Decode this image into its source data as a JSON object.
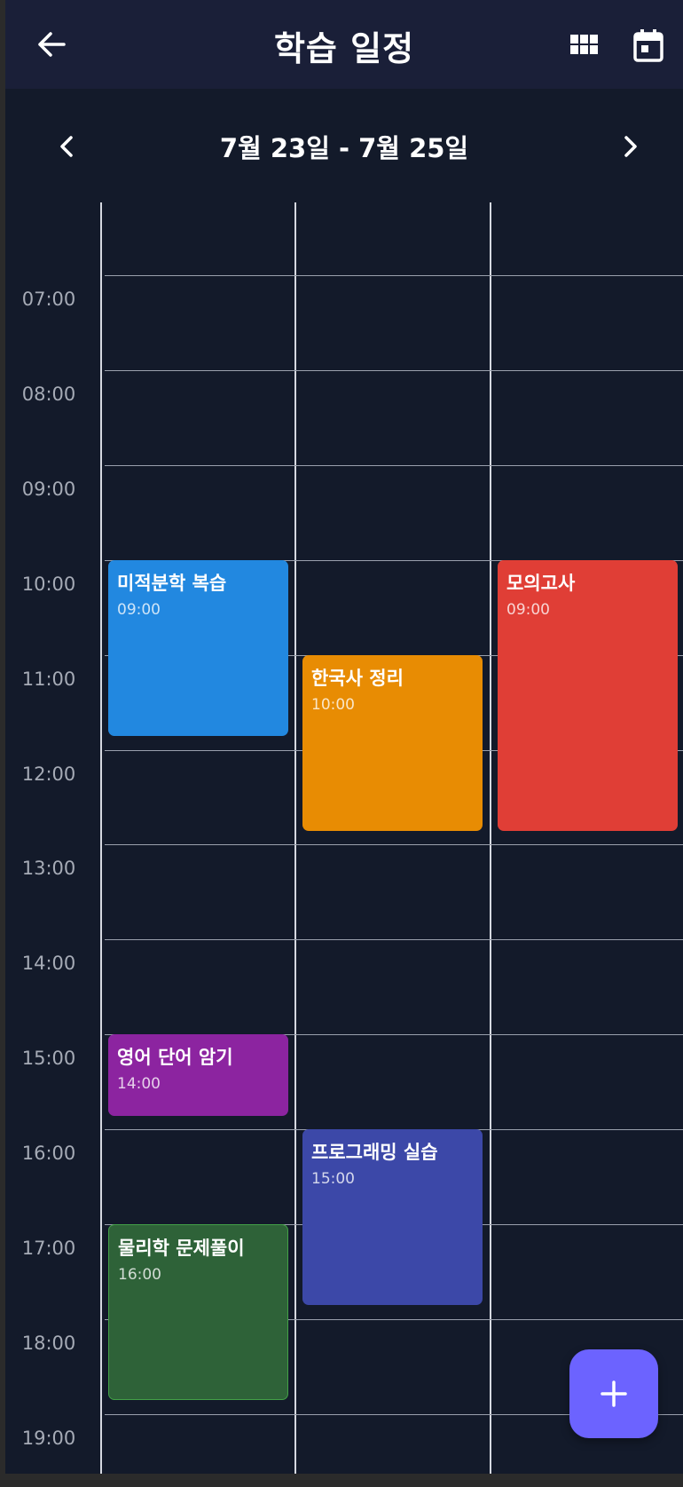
{
  "appbar": {
    "title": "학습 일정",
    "back_icon": "arrow-left-icon",
    "grid_icon": "grid-view-icon",
    "calendar_icon": "calendar-today-icon"
  },
  "week_nav": {
    "range": "7월 23일 - 7월 25일",
    "prev_icon": "chevron-left-icon",
    "next_icon": "chevron-right-icon"
  },
  "time_labels": [
    "07:00",
    "08:00",
    "09:00",
    "10:00",
    "11:00",
    "12:00",
    "13:00",
    "14:00",
    "15:00",
    "16:00",
    "17:00",
    "18:00",
    "19:00"
  ],
  "events": [
    {
      "name": "미적분학 복습",
      "time": "09:00",
      "color": "#2288e0"
    },
    {
      "name": "한국사 정리",
      "time": "10:00",
      "color": "#e88c03"
    },
    {
      "name": "모의고사",
      "time": "09:00",
      "color": "#e03e36"
    },
    {
      "name": "영어 단어 암기",
      "time": "14:00",
      "color": "#8c24a0"
    },
    {
      "name": "프로그래밍 실습",
      "time": "15:00",
      "color": "#3c48a8"
    },
    {
      "name": "물리학 문제풀이",
      "time": "16:00",
      "color": "#2e6238",
      "border": "#43a047"
    }
  ],
  "fab": {
    "icon": "plus-icon",
    "color": "#6c63ff"
  },
  "colors": {
    "background": "#131a2a",
    "appbar": "#1a1f38"
  }
}
